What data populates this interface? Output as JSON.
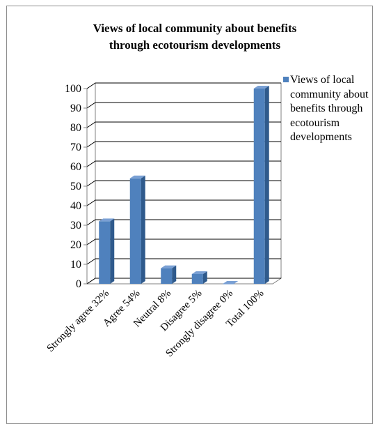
{
  "chart_data": {
    "type": "bar",
    "title_lines": [
      "Views of local community about benefits",
      "through ecotourism developments"
    ],
    "categories": [
      "Strongly agree 32%",
      "Agree 54%",
      "Neutral 8%",
      "Disagree 5%",
      "Strongly disagree 0%",
      "Total 100%"
    ],
    "series": [
      {
        "name": "Views of local community about benefits through ecotourism developments",
        "values": [
          32,
          54,
          8,
          5,
          0,
          100
        ]
      }
    ],
    "ylim": [
      0,
      100
    ],
    "yticks": [
      0,
      10,
      20,
      30,
      40,
      50,
      60,
      70,
      80,
      90,
      100
    ],
    "grid": true,
    "legend_position": "right",
    "colors": {
      "bar_front": "#4f81bd",
      "bar_side": "#2f5a8c",
      "bar_top": "#7aa0d4",
      "grid": "#000000",
      "wall": "#ffffff"
    }
  }
}
